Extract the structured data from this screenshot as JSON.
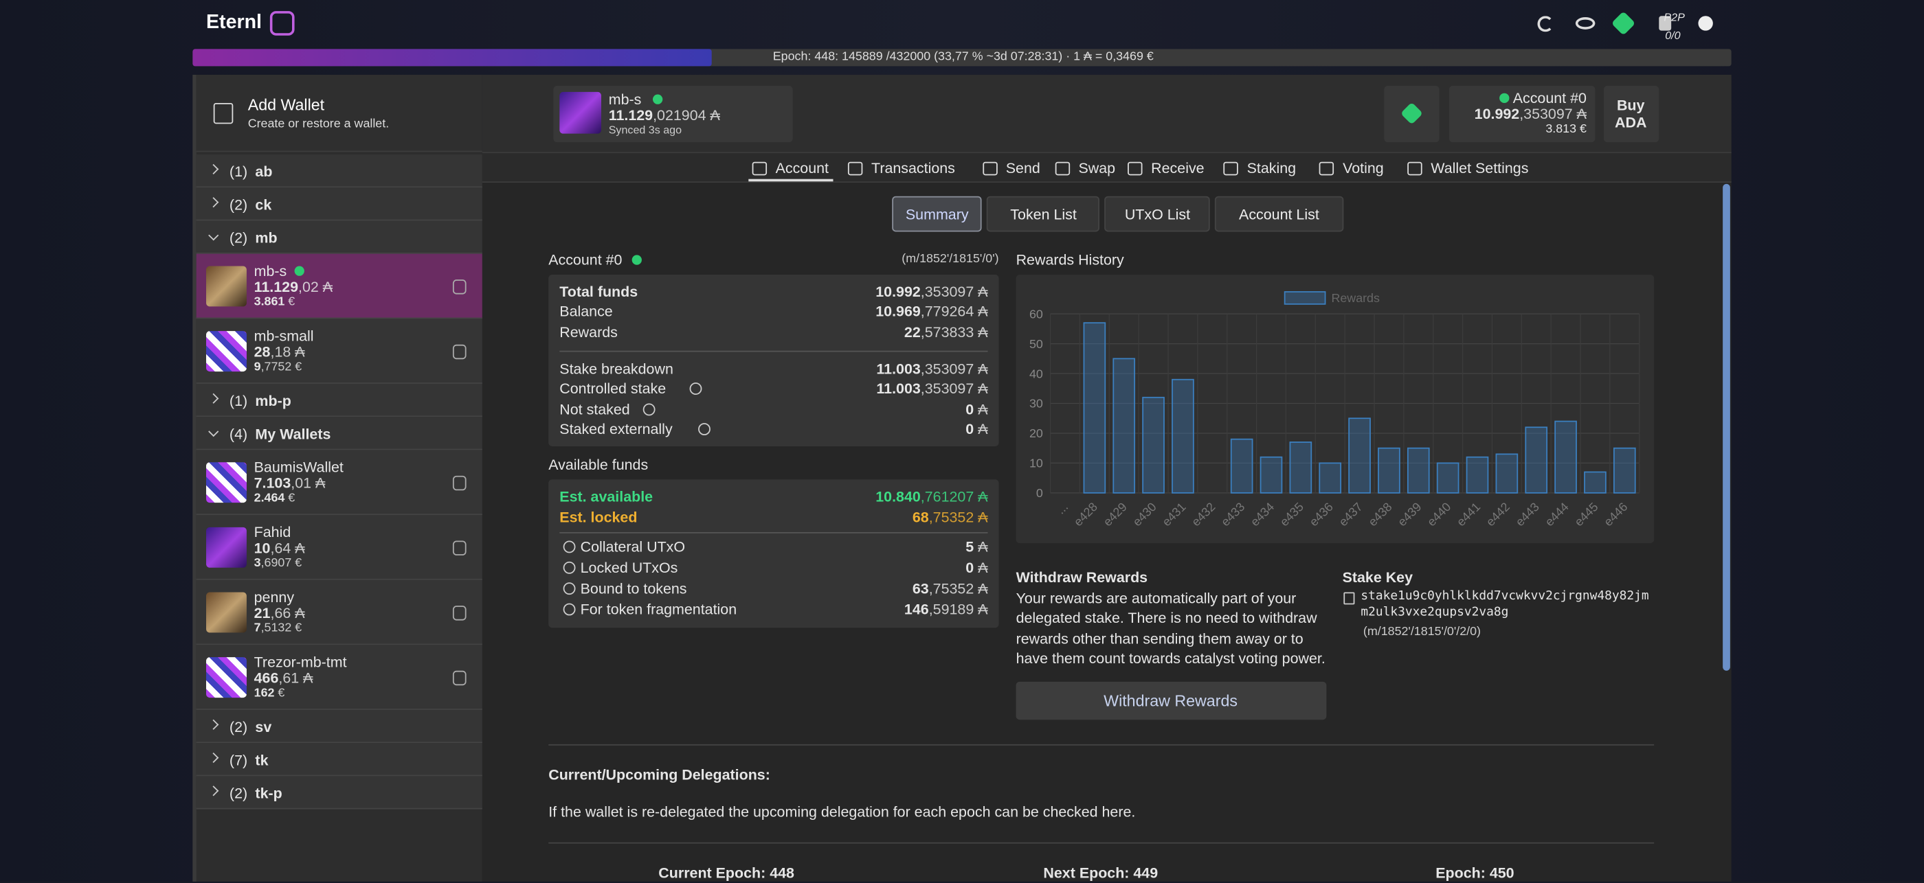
{
  "header": {
    "brand": "Eternl",
    "network": "P2P",
    "peers": "0/0"
  },
  "epoch_bar": {
    "label": "Epoch: 448: 145889 /432000 (33,77 % ~3d 07:28:31) · 1 ₳ = 0,3469 €",
    "progress": 33.77
  },
  "sidebar": {
    "add_wallet": {
      "title": "Add Wallet",
      "subtitle": "Create or restore a wallet."
    },
    "groups": [
      {
        "count": "(1)",
        "name": "ab"
      },
      {
        "count": "(2)",
        "name": "ck"
      },
      {
        "count": "(2)",
        "name": "mb",
        "wallets": [
          {
            "name": "mb-s",
            "main": "11.129",
            "rest": ",02 ₳",
            "fiat_main": "3.861",
            "fiat_rest": " €"
          },
          {
            "name": "mb-small",
            "main": "28",
            "rest": ",18 ₳",
            "fiat_main": "9",
            "fiat_rest": ",7752 €"
          }
        ]
      },
      {
        "count": "(1)",
        "name": "mb-p"
      },
      {
        "count": "(4)",
        "name": "My Wallets",
        "wallets": [
          {
            "name": "BaumisWallet",
            "main": "7.103",
            "rest": ",01 ₳",
            "fiat_main": "2.464",
            "fiat_rest": " €"
          },
          {
            "name": "Fahid",
            "main": "10",
            "rest": ",64 ₳",
            "fiat_main": "3",
            "fiat_rest": ",6907 €"
          },
          {
            "name": "penny",
            "main": "21",
            "rest": ",66 ₳",
            "fiat_main": "7",
            "fiat_rest": ",5132 €"
          },
          {
            "name": "Trezor-mb-tmt",
            "main": "466",
            "rest": ",61 ₳",
            "fiat_main": "162",
            "fiat_rest": " €"
          }
        ]
      },
      {
        "count": "(2)",
        "name": "sv"
      },
      {
        "count": "(7)",
        "name": "tk"
      },
      {
        "count": "(2)",
        "name": "tk-p"
      }
    ]
  },
  "wallet_header": {
    "name": "mb-s",
    "main": "11.129",
    "rest": ",021904 ₳",
    "sync": "Synced 3s ago",
    "account": "Account #0",
    "account_main": "10.992",
    "account_rest": ",353097 ₳",
    "account_fiat": "3.813 €",
    "buy": "Buy ADA"
  },
  "nav": {
    "tabs": [
      "Account",
      "Transactions",
      "Send",
      "Swap",
      "Receive",
      "Staking",
      "Voting",
      "Wallet Settings"
    ]
  },
  "subtabs": {
    "tabs": [
      "Summary",
      "Token List",
      "UTxO List",
      "Account List"
    ]
  },
  "account": {
    "title": "Account #0",
    "path": "(m/1852'/1815'/0')",
    "summary": [
      {
        "label": "Total funds",
        "main": "10.992",
        "rest": ",353097 ₳"
      },
      {
        "label": "Balance",
        "main": "10.969",
        "rest": ",779264 ₳"
      },
      {
        "label": "Rewards",
        "main": "22",
        "rest": ",573833 ₳"
      }
    ],
    "stake": [
      {
        "label": "Stake breakdown",
        "main": "11.003",
        "rest": ",353097 ₳"
      },
      {
        "label": "Controlled stake",
        "main": "11.003",
        "rest": ",353097 ₳"
      },
      {
        "label": "Not staked",
        "main": "0",
        "rest": " ₳"
      },
      {
        "label": "Staked externally",
        "main": "0",
        "rest": " ₳"
      }
    ]
  },
  "available": {
    "title": "Available funds",
    "estimates": [
      {
        "label": "Est. available",
        "main": "10.840",
        "rest": ",761207 ₳"
      },
      {
        "label": "Est. locked",
        "main": "68",
        "rest": ",75352 ₳"
      }
    ],
    "details": [
      {
        "label": "Collateral UTxO",
        "main": "5",
        "rest": " ₳"
      },
      {
        "label": "Locked UTxOs",
        "main": "0",
        "rest": " ₳"
      },
      {
        "label": "Bound to tokens",
        "main": "63",
        "rest": ",75352 ₳"
      },
      {
        "label": "For token fragmentation",
        "main": "146",
        "rest": ",59189 ₳"
      }
    ]
  },
  "chart_data": {
    "type": "bar",
    "title": "Rewards History",
    "categories": [
      "...",
      "e428",
      "e429",
      "e430",
      "e431",
      "e432",
      "e433",
      "e434",
      "e435",
      "e436",
      "e437",
      "e438",
      "e439",
      "e440",
      "e441",
      "e442",
      "e443",
      "e444",
      "e445",
      "e446"
    ],
    "series": [
      {
        "name": "Rewards",
        "color": "#3b7fbf",
        "values": [
          null,
          57,
          45,
          32,
          38,
          0,
          18,
          12,
          17,
          10,
          25,
          15,
          15,
          10,
          12,
          13,
          22,
          24,
          7,
          15
        ]
      }
    ],
    "ylim": [
      0,
      60
    ],
    "yticks": [
      0,
      10,
      20,
      30,
      40,
      50,
      60
    ],
    "grid": true
  },
  "withdraw": {
    "title": "Withdraw Rewards",
    "text": "Your rewards are automatically part of your delegated stake. There is no need to withdraw rewards other than sending them away or to have them count towards catalyst voting power.",
    "button": "Withdraw Rewards"
  },
  "stake_key": {
    "title": "Stake Key",
    "key": "stake1u9c0yhlklkdd7vcwkvv2cjrgnw48y82jmm2ulk3vxe2qupsv2va8g",
    "path": "(m/1852'/1815'/0'/2/0)"
  },
  "delegations": {
    "title": "Current/Upcoming Delegations:",
    "text": "If the wallet is re-delegated the upcoming delegation for each epoch can be checked here.",
    "epochs": [
      "Current Epoch: 448",
      "Next Epoch: 449",
      "Epoch: 450"
    ]
  }
}
